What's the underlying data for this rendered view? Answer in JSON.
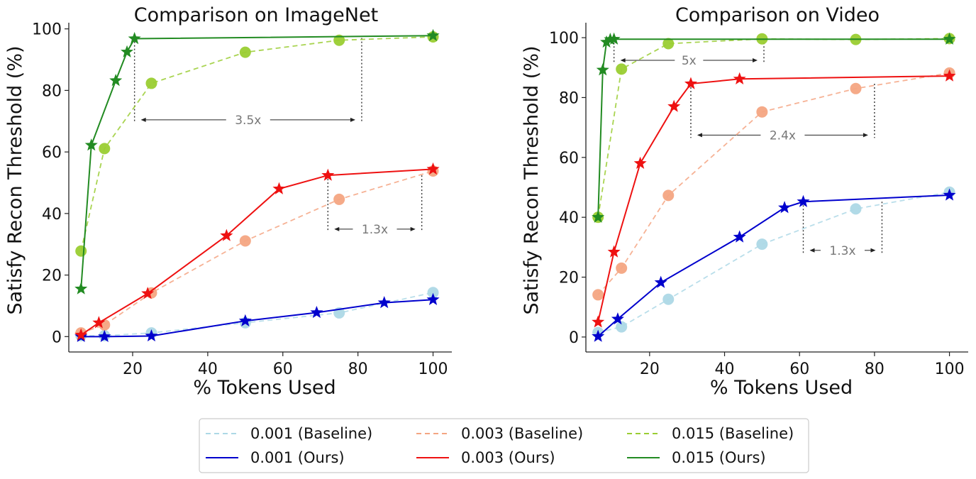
{
  "chart_data": [
    {
      "type": "line",
      "title": "Comparison on ImageNet",
      "xlabel": "% Tokens Used",
      "ylabel": "Satisfy Recon Threshold (%)",
      "xlim": [
        3,
        105
      ],
      "ylim": [
        -5,
        102
      ],
      "xticks": [
        20,
        40,
        60,
        80,
        100
      ],
      "yticks": [
        0,
        20,
        40,
        60,
        80,
        100
      ],
      "series": [
        {
          "name": "0.001 (Baseline)",
          "style": "baseline",
          "color": "#add8e6",
          "marker": "circle",
          "x": [
            6.25,
            12.5,
            25,
            50,
            75,
            100
          ],
          "y": [
            0.3,
            0.3,
            1.2,
            4.5,
            7.7,
            14.3
          ]
        },
        {
          "name": "0.003 (Baseline)",
          "style": "baseline",
          "color": "#f4a582",
          "marker": "circle",
          "x": [
            6.25,
            12.5,
            25,
            50,
            75,
            100
          ],
          "y": [
            1.2,
            3.8,
            14.2,
            31.1,
            44.6,
            53.8
          ]
        },
        {
          "name": "0.015 (Baseline)",
          "style": "baseline",
          "color": "#9acd32",
          "marker": "circle",
          "x": [
            6.25,
            12.5,
            25,
            50,
            75,
            100
          ],
          "y": [
            27.8,
            61.1,
            82.3,
            92.4,
            96.3,
            97.4
          ]
        },
        {
          "name": "0.001 (Ours)",
          "style": "ours",
          "color": "#0000cd",
          "marker": "star",
          "x": [
            6.25,
            12.5,
            25,
            50,
            69,
            87,
            100
          ],
          "y": [
            0,
            0,
            0.2,
            5.1,
            7.8,
            11.0,
            12.0
          ]
        },
        {
          "name": "0.003 (Ours)",
          "style": "ours",
          "color": "#ee1111",
          "marker": "star",
          "x": [
            6.25,
            11,
            24,
            45,
            59,
            72,
            100
          ],
          "y": [
            0.5,
            4.5,
            14.0,
            32.8,
            48.0,
            52.4,
            54.4
          ]
        },
        {
          "name": "0.015 (Ours)",
          "style": "ours",
          "color": "#228b22",
          "marker": "star",
          "x": [
            6.25,
            9,
            15.5,
            18.5,
            20.5,
            100
          ],
          "y": [
            15.5,
            62.2,
            83.2,
            92.5,
            96.8,
            97.8
          ]
        }
      ],
      "annotations": [
        {
          "label": "3.5x",
          "x1": 20.5,
          "x2": 81,
          "y_from": 97,
          "y_to": 69.5
        },
        {
          "label": "1.3x",
          "x1": 72,
          "x2": 97,
          "y_from": 52.4,
          "y_to": 34
        }
      ]
    },
    {
      "type": "line",
      "title": "Comparison on Video",
      "xlabel": "% Tokens Used",
      "ylabel": "Satisfy Recon Threshold (%)",
      "xlim": [
        3,
        105
      ],
      "ylim": [
        -5,
        105
      ],
      "xticks": [
        20,
        40,
        60,
        80,
        100
      ],
      "yticks": [
        0,
        20,
        40,
        60,
        80,
        100
      ],
      "series": [
        {
          "name": "0.001 (Baseline)",
          "style": "baseline",
          "color": "#add8e6",
          "marker": "circle",
          "x": [
            6.25,
            12.5,
            25,
            50,
            75,
            100
          ],
          "y": [
            1.5,
            3.4,
            12.6,
            31.0,
            42.8,
            48.4
          ]
        },
        {
          "name": "0.003 (Baseline)",
          "style": "baseline",
          "color": "#f4a582",
          "marker": "circle",
          "x": [
            6.25,
            12.5,
            25,
            50,
            75,
            100
          ],
          "y": [
            14.1,
            23.0,
            47.3,
            75.2,
            83.0,
            88.2
          ]
        },
        {
          "name": "0.015 (Baseline)",
          "style": "baseline",
          "color": "#9acd32",
          "marker": "circle",
          "x": [
            6.25,
            12.5,
            25,
            50,
            75,
            100
          ],
          "y": [
            40.0,
            89.5,
            98.0,
            99.6,
            99.4,
            99.7
          ]
        },
        {
          "name": "0.001 (Ours)",
          "style": "ours",
          "color": "#0000cd",
          "marker": "star",
          "x": [
            6.25,
            11.5,
            23,
            44,
            56,
            61,
            100
          ],
          "y": [
            0.2,
            6.0,
            18.2,
            33.4,
            43.2,
            45.2,
            47.4
          ]
        },
        {
          "name": "0.003 (Ours)",
          "style": "ours",
          "color": "#ee1111",
          "marker": "star",
          "x": [
            6.25,
            10.5,
            17.5,
            26.5,
            31,
            44,
            100
          ],
          "y": [
            5.0,
            28.4,
            58.0,
            77.0,
            84.6,
            86.2,
            87.2
          ]
        },
        {
          "name": "0.015 (Ours)",
          "style": "ours",
          "color": "#228b22",
          "marker": "star",
          "x": [
            6.25,
            7.5,
            8.5,
            9.5,
            10.5,
            100
          ],
          "y": [
            40.0,
            89.2,
            98.5,
            99.4,
            99.5,
            99.5
          ]
        }
      ],
      "annotations": [
        {
          "label": "5x",
          "x1": 10.5,
          "x2": 50.5,
          "y_from": 99.5,
          "y_to": 91.5
        },
        {
          "label": "2.4x",
          "x1": 31,
          "x2": 80,
          "y_from": 84.6,
          "y_to": 66.5
        },
        {
          "label": "1.3x",
          "x1": 61,
          "x2": 82,
          "y_from": 45.2,
          "y_to": 28
        }
      ]
    }
  ],
  "legend": {
    "location": "bottom-center",
    "items": [
      {
        "label": "0.001 (Baseline)",
        "color": "#add8e6",
        "style": "baseline"
      },
      {
        "label": "0.003 (Baseline)",
        "color": "#f4a582",
        "style": "baseline"
      },
      {
        "label": "0.015 (Baseline)",
        "color": "#9acd32",
        "style": "baseline"
      },
      {
        "label": "0.001 (Ours)",
        "color": "#0000cd",
        "style": "ours"
      },
      {
        "label": "0.003 (Ours)",
        "color": "#ee1111",
        "style": "ours"
      },
      {
        "label": "0.015 (Ours)",
        "color": "#228b22",
        "style": "ours"
      }
    ]
  }
}
